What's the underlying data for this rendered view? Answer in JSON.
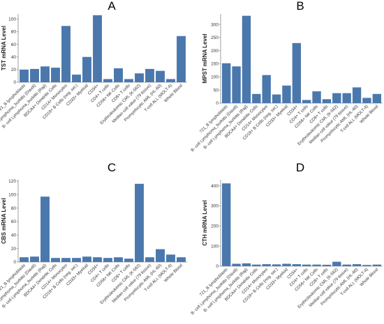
{
  "colors": {
    "bar": "#4a78ad",
    "axis": "#888888"
  },
  "categories": [
    "721_B lymphoblasts",
    "B- cell Lymphoma_burkitts (Daudi)",
    "B- cell Lymphoma_burkitts (Raji)",
    "BDCA4+ Dendritic Cells",
    "CD14+ Monocytes",
    "CD19+ B Cells (neg. sel.)",
    "CD33+ Myeloid",
    "CD34+",
    "CD4+ T cells",
    "CD56+ NK Cells",
    "CD8+ T cells",
    "Erythroleukemic CML (K-562)",
    "Median cell value (79 tissue)",
    "Promyelocytic AML (HL-60)",
    "T-cell ALL (MOLT-4)",
    "Whole Blood"
  ],
  "chart_data": [
    {
      "type": "bar",
      "panel": "A",
      "ylabel": "TST mRNA Level",
      "ylim": [
        0,
        108
      ],
      "yticks": [
        0,
        20,
        40,
        60,
        80,
        100
      ],
      "values": [
        20,
        21,
        25,
        23,
        89,
        12,
        40,
        106,
        5,
        22,
        5,
        14,
        21,
        18,
        5,
        73
      ]
    },
    {
      "type": "bar",
      "panel": "B",
      "ylabel": "MPST mRNA Level",
      "ylim": [
        0,
        340
      ],
      "yticks": [
        0,
        50,
        100,
        150,
        200,
        250,
        300
      ],
      "values": [
        152,
        140,
        333,
        35,
        107,
        33,
        67,
        229,
        12,
        45,
        15,
        38,
        38,
        60,
        20,
        35
      ]
    },
    {
      "type": "bar",
      "panel": "C",
      "ylabel": "CBS mRNA Level",
      "ylim": [
        0,
        122
      ],
      "yticks": [
        0,
        20,
        40,
        60,
        80,
        100,
        120
      ],
      "values": [
        7,
        8,
        97,
        6,
        6,
        6,
        8,
        7,
        6,
        7,
        5,
        116,
        7,
        19,
        11,
        7
      ]
    },
    {
      "type": "bar",
      "panel": "D",
      "ylabel": "CTH mRNA Level",
      "ylim": [
        0,
        430
      ],
      "yticks": [
        0,
        100,
        200,
        300,
        400
      ],
      "values": [
        412,
        12,
        14,
        8,
        10,
        9,
        12,
        10,
        8,
        8,
        7,
        22,
        8,
        10,
        6,
        8
      ]
    }
  ]
}
